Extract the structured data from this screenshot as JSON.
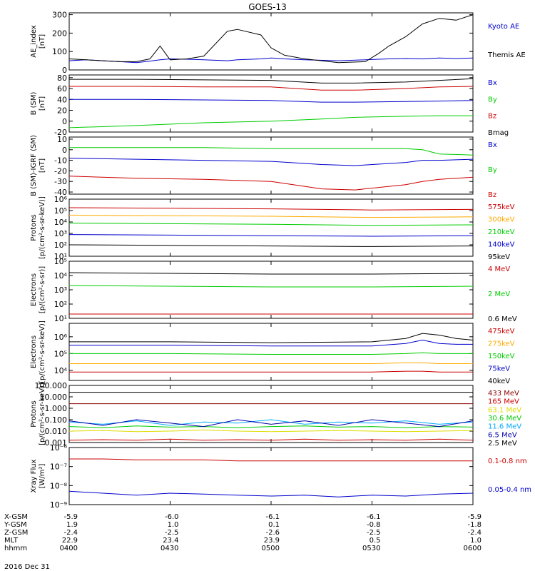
{
  "title": "GOES-13",
  "date_label": "2016 Dec 31",
  "footer": {
    "row_labels": [
      "X-GSM",
      "Y-GSM",
      "Z-GSM",
      "MLT",
      "hhmm"
    ],
    "columns": [
      [
        "-5.9",
        "1.9",
        "-2.4",
        "22.9",
        "0400"
      ],
      [
        "-6.0",
        "1.0",
        "-2.5",
        "23.4",
        "0430"
      ],
      [
        "-6.1",
        "0.1",
        "-2.6",
        "23.9",
        "0500"
      ],
      [
        "-6.1",
        "-0.8",
        "-2.5",
        "0.5",
        "0530"
      ],
      [
        "-5.9",
        "-1.8",
        "-2.4",
        "1.0",
        "0600"
      ]
    ]
  },
  "chart_data": [
    {
      "type": "line",
      "ylabel": [
        "AE_index",
        "[nT]"
      ],
      "yticks": [
        "0",
        "100",
        "200",
        "300"
      ],
      "ylim": [
        0,
        310
      ],
      "log": false,
      "x": [
        0,
        5,
        10,
        15,
        20,
        24,
        27,
        30,
        35,
        40,
        47,
        50,
        57,
        60,
        64,
        70,
        80,
        88,
        92,
        95,
        100,
        105,
        110,
        115,
        120
      ],
      "series": [
        {
          "name": "Kyoto AE",
          "color": "#0000cc",
          "values": [
            50,
            55,
            50,
            45,
            40,
            48,
            55,
            60,
            58,
            55,
            50,
            55,
            60,
            65,
            60,
            55,
            50,
            55,
            58,
            60,
            62,
            60,
            65,
            62,
            65
          ]
        },
        {
          "name": "Themis AE",
          "color": "#000000",
          "values": [
            60,
            55,
            50,
            45,
            45,
            60,
            130,
            55,
            60,
            75,
            210,
            220,
            190,
            120,
            80,
            60,
            40,
            45,
            90,
            130,
            180,
            250,
            280,
            270,
            300
          ]
        }
      ]
    },
    {
      "type": "line",
      "ylabel": [
        "B (SM)",
        "[nT]"
      ],
      "yticks": [
        "-20",
        "0",
        "20",
        "40",
        "60",
        "80"
      ],
      "ylim": [
        -20,
        85
      ],
      "log": false,
      "x": [
        0,
        20,
        40,
        60,
        75,
        85,
        100,
        110,
        120
      ],
      "series": [
        {
          "name": "Bx",
          "color": "#0000cc",
          "values": [
            40,
            40,
            39,
            38,
            35,
            35,
            36,
            37,
            38
          ]
        },
        {
          "name": "By",
          "color": "#00cc00",
          "values": [
            -12,
            -8,
            -3,
            0,
            4,
            7,
            9,
            10,
            10
          ]
        },
        {
          "name": "Bz",
          "color": "#cc0000",
          "values": [
            64,
            64,
            63,
            63,
            57,
            57,
            60,
            63,
            64
          ]
        },
        {
          "name": "Bmag",
          "color": "#000000",
          "values": [
            77,
            77,
            76,
            75,
            70,
            70,
            72,
            75,
            78
          ]
        }
      ]
    },
    {
      "type": "line",
      "ylabel": [
        "B (SM)-IGRF (SM)",
        "[nT]"
      ],
      "yticks": [
        "-40",
        "-30",
        "-20",
        "-10",
        "0",
        "10"
      ],
      "ylim": [
        -42,
        12
      ],
      "log": false,
      "x": [
        0,
        20,
        40,
        60,
        75,
        85,
        100,
        105,
        110,
        120
      ],
      "series": [
        {
          "name": "Bx",
          "color": "#0000cc",
          "values": [
            -8,
            -9,
            -10,
            -11,
            -14,
            -15,
            -12,
            -10,
            -10,
            -9
          ]
        },
        {
          "name": "By",
          "color": "#00cc00",
          "values": [
            2,
            2,
            2,
            1,
            1,
            1,
            1,
            0,
            -4,
            -5
          ]
        },
        {
          "name": "Bz",
          "color": "#cc0000",
          "values": [
            -25,
            -27,
            -28,
            -30,
            -37,
            -38,
            -33,
            -30,
            -28,
            -26
          ]
        }
      ]
    },
    {
      "type": "line",
      "ylabel": [
        "Protons",
        "[p/(cm²-s-sr-keV)]"
      ],
      "yticks": [
        "10¹",
        "10²",
        "10³",
        "10⁴",
        "10⁵",
        "10⁶"
      ],
      "ylim": [
        1,
        6
      ],
      "log": true,
      "x": [
        0,
        30,
        60,
        90,
        120
      ],
      "series": [
        {
          "name": "575keV",
          "color": "#cc0000",
          "values": [
            5.25,
            5.2,
            5.15,
            5.05,
            5.1
          ]
        },
        {
          "name": "300keV",
          "color": "#ffaa00",
          "values": [
            4.6,
            4.55,
            4.5,
            4.4,
            4.45
          ]
        },
        {
          "name": "210keV",
          "color": "#00cc00",
          "values": [
            3.9,
            3.85,
            3.8,
            3.7,
            3.75
          ]
        },
        {
          "name": "140keV",
          "color": "#0000cc",
          "values": [
            2.9,
            2.85,
            2.8,
            2.75,
            2.8
          ]
        },
        {
          "name": "95keV",
          "color": "#000000",
          "values": [
            2.0,
            1.95,
            1.9,
            1.85,
            1.9
          ]
        }
      ]
    },
    {
      "type": "line",
      "ylabel": [
        "Electrons",
        "[p/(cm²-s-sr)]"
      ],
      "yticks": [
        "10¹",
        "10²",
        "10³",
        "10⁴",
        "10⁵"
      ],
      "ylim": [
        1,
        5
      ],
      "log": true,
      "x": [
        0,
        30,
        60,
        90,
        120
      ],
      "series": [
        {
          "name": "4 MeV",
          "color": "#cc0000",
          "values": [
            1.3,
            1.3,
            1.3,
            1.3,
            1.3
          ]
        },
        {
          "name": "2 MeV",
          "color": "#00cc00",
          "values": [
            3.3,
            3.25,
            3.2,
            3.2,
            3.25
          ]
        },
        {
          "name": "0.6 MeV",
          "color": "#000000",
          "values": [
            4.2,
            4.15,
            4.1,
            4.1,
            4.15
          ]
        }
      ]
    },
    {
      "type": "line",
      "ylabel": [
        "Electrons",
        "[p/(cm²-s-sr-keV)]"
      ],
      "yticks": [
        "10⁴",
        "10⁵",
        "10⁶"
      ],
      "ylim": [
        3.4,
        6.8
      ],
      "log": true,
      "x": [
        0,
        30,
        60,
        90,
        100,
        105,
        110,
        115,
        120
      ],
      "series": [
        {
          "name": "475keV",
          "color": "#cc0000",
          "values": [
            3.9,
            3.9,
            3.9,
            3.9,
            3.95,
            3.95,
            3.9,
            3.9,
            3.9
          ]
        },
        {
          "name": "275keV",
          "color": "#ffaa00",
          "values": [
            4.4,
            4.4,
            4.4,
            4.4,
            4.45,
            4.45,
            4.4,
            4.4,
            4.4
          ]
        },
        {
          "name": "150keV",
          "color": "#00cc00",
          "values": [
            5.0,
            5.0,
            4.95,
            4.95,
            5.0,
            5.05,
            5.0,
            5.0,
            5.0
          ]
        },
        {
          "name": "75keV",
          "color": "#0000cc",
          "values": [
            5.5,
            5.5,
            5.45,
            5.45,
            5.6,
            5.8,
            5.6,
            5.55,
            5.55
          ]
        },
        {
          "name": "40keV",
          "color": "#000000",
          "values": [
            5.7,
            5.7,
            5.65,
            5.7,
            5.9,
            6.2,
            6.1,
            5.9,
            5.8
          ]
        }
      ]
    },
    {
      "type": "line",
      "ylabel": [
        "Protons",
        "[p/(cm²-s-sr-keV)]"
      ],
      "yticks": [
        "0.001",
        "0.010",
        "0.100",
        "1.000",
        "10.000",
        "100.000"
      ],
      "ylim": [
        -3,
        2
      ],
      "log": true,
      "x": [
        0,
        10,
        20,
        30,
        40,
        50,
        60,
        70,
        80,
        90,
        100,
        110,
        120
      ],
      "series": [
        {
          "name": "433 MeV",
          "color": "#880000",
          "values": [
            0.4,
            0.4,
            0.4,
            0.4,
            0.4,
            0.4,
            0.4,
            0.4,
            0.4,
            0.4,
            0.4,
            0.4,
            0.4
          ]
        },
        {
          "name": "165 MeV",
          "color": "#cc0000",
          "values": [
            -2.8,
            -2.75,
            -2.8,
            -2.7,
            -2.8,
            -2.75,
            -2.8,
            -2.7,
            -2.8,
            -2.75,
            -2.8,
            -2.7,
            -2.8
          ]
        },
        {
          "name": "63.1 MeV",
          "color": "#dddd00",
          "values": [
            -2.0,
            -1.95,
            -2.05,
            -2.0,
            -1.9,
            -2.0,
            -2.05,
            -2.0,
            -1.95,
            -2.0,
            -2.05,
            -2.0,
            -1.95
          ]
        },
        {
          "name": "30.6 MeV",
          "color": "#00cc00",
          "values": [
            -1.6,
            -1.7,
            -1.55,
            -1.65,
            -1.6,
            -1.7,
            -1.6,
            -1.55,
            -1.65,
            -1.6,
            -1.7,
            -1.6,
            -1.65
          ]
        },
        {
          "name": "11.6 MeV",
          "color": "#00aaff",
          "values": [
            -1.2,
            -1.4,
            -1.1,
            -1.5,
            -1.2,
            -1.3,
            -1.0,
            -1.4,
            -1.2,
            -1.3,
            -1.1,
            -1.4,
            -1.2
          ]
        },
        {
          "name": "6.5 MeV",
          "color": "#0000aa",
          "values": [
            -1.1,
            -1.5,
            -1.0,
            -1.3,
            -1.6,
            -1.0,
            -1.4,
            -1.1,
            -1.5,
            -1.0,
            -1.3,
            -1.6,
            -1.1
          ]
        },
        {
          "name": "2.5 MeV",
          "color": "#000000",
          "values": [
            1.4,
            1.4,
            1.4,
            1.4,
            1.4,
            1.4,
            1.4,
            1.4,
            1.4,
            1.4,
            1.4,
            1.4,
            1.4
          ]
        }
      ]
    },
    {
      "type": "line",
      "ylabel": [
        "Xray Flux",
        "[W/m²]"
      ],
      "yticks": [
        "10⁻⁹",
        "10⁻⁸",
        "10⁻⁷",
        "10⁻⁶"
      ],
      "ylim": [
        -9,
        -6
      ],
      "log": true,
      "x": [
        0,
        10,
        20,
        30,
        40,
        50,
        60,
        70,
        80,
        90,
        100,
        110,
        120
      ],
      "series": [
        {
          "name": "0.1-0.8 nm",
          "color": "#cc0000",
          "values": [
            -6.6,
            -6.6,
            -6.65,
            -6.65,
            -6.65,
            -6.7,
            -6.7,
            -6.7,
            -6.7,
            -6.7,
            -6.7,
            -6.7,
            -6.7
          ]
        },
        {
          "name": "0.05-0.4 nm",
          "color": "#0000cc",
          "values": [
            -8.3,
            -8.4,
            -8.5,
            -8.4,
            -8.45,
            -8.5,
            -8.55,
            -8.5,
            -8.6,
            -8.5,
            -8.55,
            -8.45,
            -8.4
          ]
        }
      ]
    }
  ]
}
